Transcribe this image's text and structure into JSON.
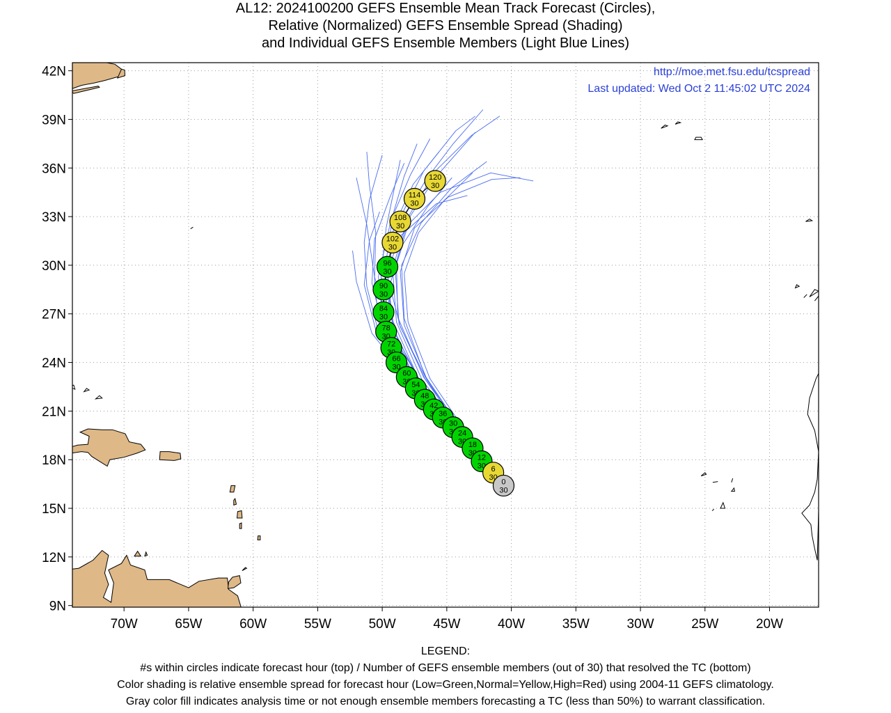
{
  "title": {
    "line1": "AL12: 2024100200 GEFS Ensemble Mean Track Forecast (Circles),",
    "line2": "Relative (Normalized) GEFS Ensemble Spread (Shading)",
    "line3": "and Individual GEFS Ensemble Members (Light Blue Lines)"
  },
  "header": {
    "url": "http://moe.met.fsu.edu/tcspread",
    "updated": "Last updated: Wed Oct 2 11:45:02 UTC 2024"
  },
  "map": {
    "lon_range": [
      -74,
      -16.2
    ],
    "lat_range": [
      8.9,
      42.5
    ],
    "lon_ticks": [
      {
        "value": -70,
        "label": "70W"
      },
      {
        "value": -65,
        "label": "65W"
      },
      {
        "value": -60,
        "label": "60W"
      },
      {
        "value": -55,
        "label": "55W"
      },
      {
        "value": -50,
        "label": "50W"
      },
      {
        "value": -45,
        "label": "45W"
      },
      {
        "value": -40,
        "label": "40W"
      },
      {
        "value": -35,
        "label": "35W"
      },
      {
        "value": -30,
        "label": "30W"
      },
      {
        "value": -25,
        "label": "25W"
      },
      {
        "value": -20,
        "label": "20W"
      }
    ],
    "lat_ticks": [
      {
        "value": 9,
        "label": "9N"
      },
      {
        "value": 12,
        "label": "12N"
      },
      {
        "value": 15,
        "label": "15N"
      },
      {
        "value": 18,
        "label": "18N"
      },
      {
        "value": 21,
        "label": "21N"
      },
      {
        "value": 24,
        "label": "24N"
      },
      {
        "value": 27,
        "label": "27N"
      },
      {
        "value": 30,
        "label": "30N"
      },
      {
        "value": 33,
        "label": "33N"
      },
      {
        "value": 36,
        "label": "36N"
      },
      {
        "value": 39,
        "label": "39N"
      },
      {
        "value": 42,
        "label": "42N"
      }
    ],
    "colors": {
      "land": "#deb887",
      "coast": "#000000",
      "grid": "#9a9a9a",
      "member": "#4a6cf0",
      "green": "#00d400",
      "yellow": "#e8d834",
      "gray": "#c8c8c8"
    },
    "track": [
      {
        "hour": "0",
        "members": "30",
        "lat": 16.4,
        "lon": -40.6,
        "shade": "gray"
      },
      {
        "hour": "6",
        "members": "30",
        "lat": 17.2,
        "lon": -41.4,
        "shade": "yellow"
      },
      {
        "hour": "12",
        "members": "30",
        "lat": 17.9,
        "lon": -42.3,
        "shade": "green"
      },
      {
        "hour": "18",
        "members": "30",
        "lat": 18.7,
        "lon": -43.0,
        "shade": "green"
      },
      {
        "hour": "24",
        "members": "30",
        "lat": 19.4,
        "lon": -43.8,
        "shade": "green"
      },
      {
        "hour": "30",
        "members": "30",
        "lat": 20.0,
        "lon": -44.5,
        "shade": "green"
      },
      {
        "hour": "36",
        "members": "30",
        "lat": 20.6,
        "lon": -45.3,
        "shade": "green"
      },
      {
        "hour": "42",
        "members": "30",
        "lat": 21.1,
        "lon": -46.0,
        "shade": "green"
      },
      {
        "hour": "48",
        "members": "30",
        "lat": 21.7,
        "lon": -46.7,
        "shade": "green"
      },
      {
        "hour": "54",
        "members": "30",
        "lat": 22.4,
        "lon": -47.4,
        "shade": "green"
      },
      {
        "hour": "60",
        "members": "30",
        "lat": 23.1,
        "lon": -48.1,
        "shade": "green"
      },
      {
        "hour": "66",
        "members": "30",
        "lat": 24.0,
        "lon": -48.9,
        "shade": "green"
      },
      {
        "hour": "72",
        "members": "30",
        "lat": 24.9,
        "lon": -49.3,
        "shade": "green"
      },
      {
        "hour": "78",
        "members": "30",
        "lat": 25.9,
        "lon": -49.7,
        "shade": "green"
      },
      {
        "hour": "84",
        "members": "30",
        "lat": 27.1,
        "lon": -49.9,
        "shade": "green"
      },
      {
        "hour": "90",
        "members": "30",
        "lat": 28.5,
        "lon": -49.9,
        "shade": "green"
      },
      {
        "hour": "96",
        "members": "30",
        "lat": 29.9,
        "lon": -49.6,
        "shade": "green"
      },
      {
        "hour": "102",
        "members": "30",
        "lat": 31.4,
        "lon": -49.2,
        "shade": "yellow"
      },
      {
        "hour": "108",
        "members": "30",
        "lat": 32.7,
        "lon": -48.6,
        "shade": "yellow"
      },
      {
        "hour": "114",
        "members": "30",
        "lat": 34.1,
        "lon": -47.5,
        "shade": "yellow"
      },
      {
        "hour": "120",
        "members": "30",
        "lat": 35.2,
        "lon": -45.9,
        "shade": "yellow"
      }
    ]
  },
  "legend": {
    "heading": "LEGEND:",
    "line1": "#s within circles indicate forecast hour (top) / Number of GEFS ensemble members (out of 30) that resolved the TC (bottom)",
    "line2": "Color shading is relative ensemble spread for forecast hour (Low=Green,Normal=Yellow,High=Red) using 2004-11 GEFS climatology.",
    "line3": "Gray color fill indicates analysis time or not enough ensemble members forecasting a TC (less than 50%) to warrant classification."
  }
}
